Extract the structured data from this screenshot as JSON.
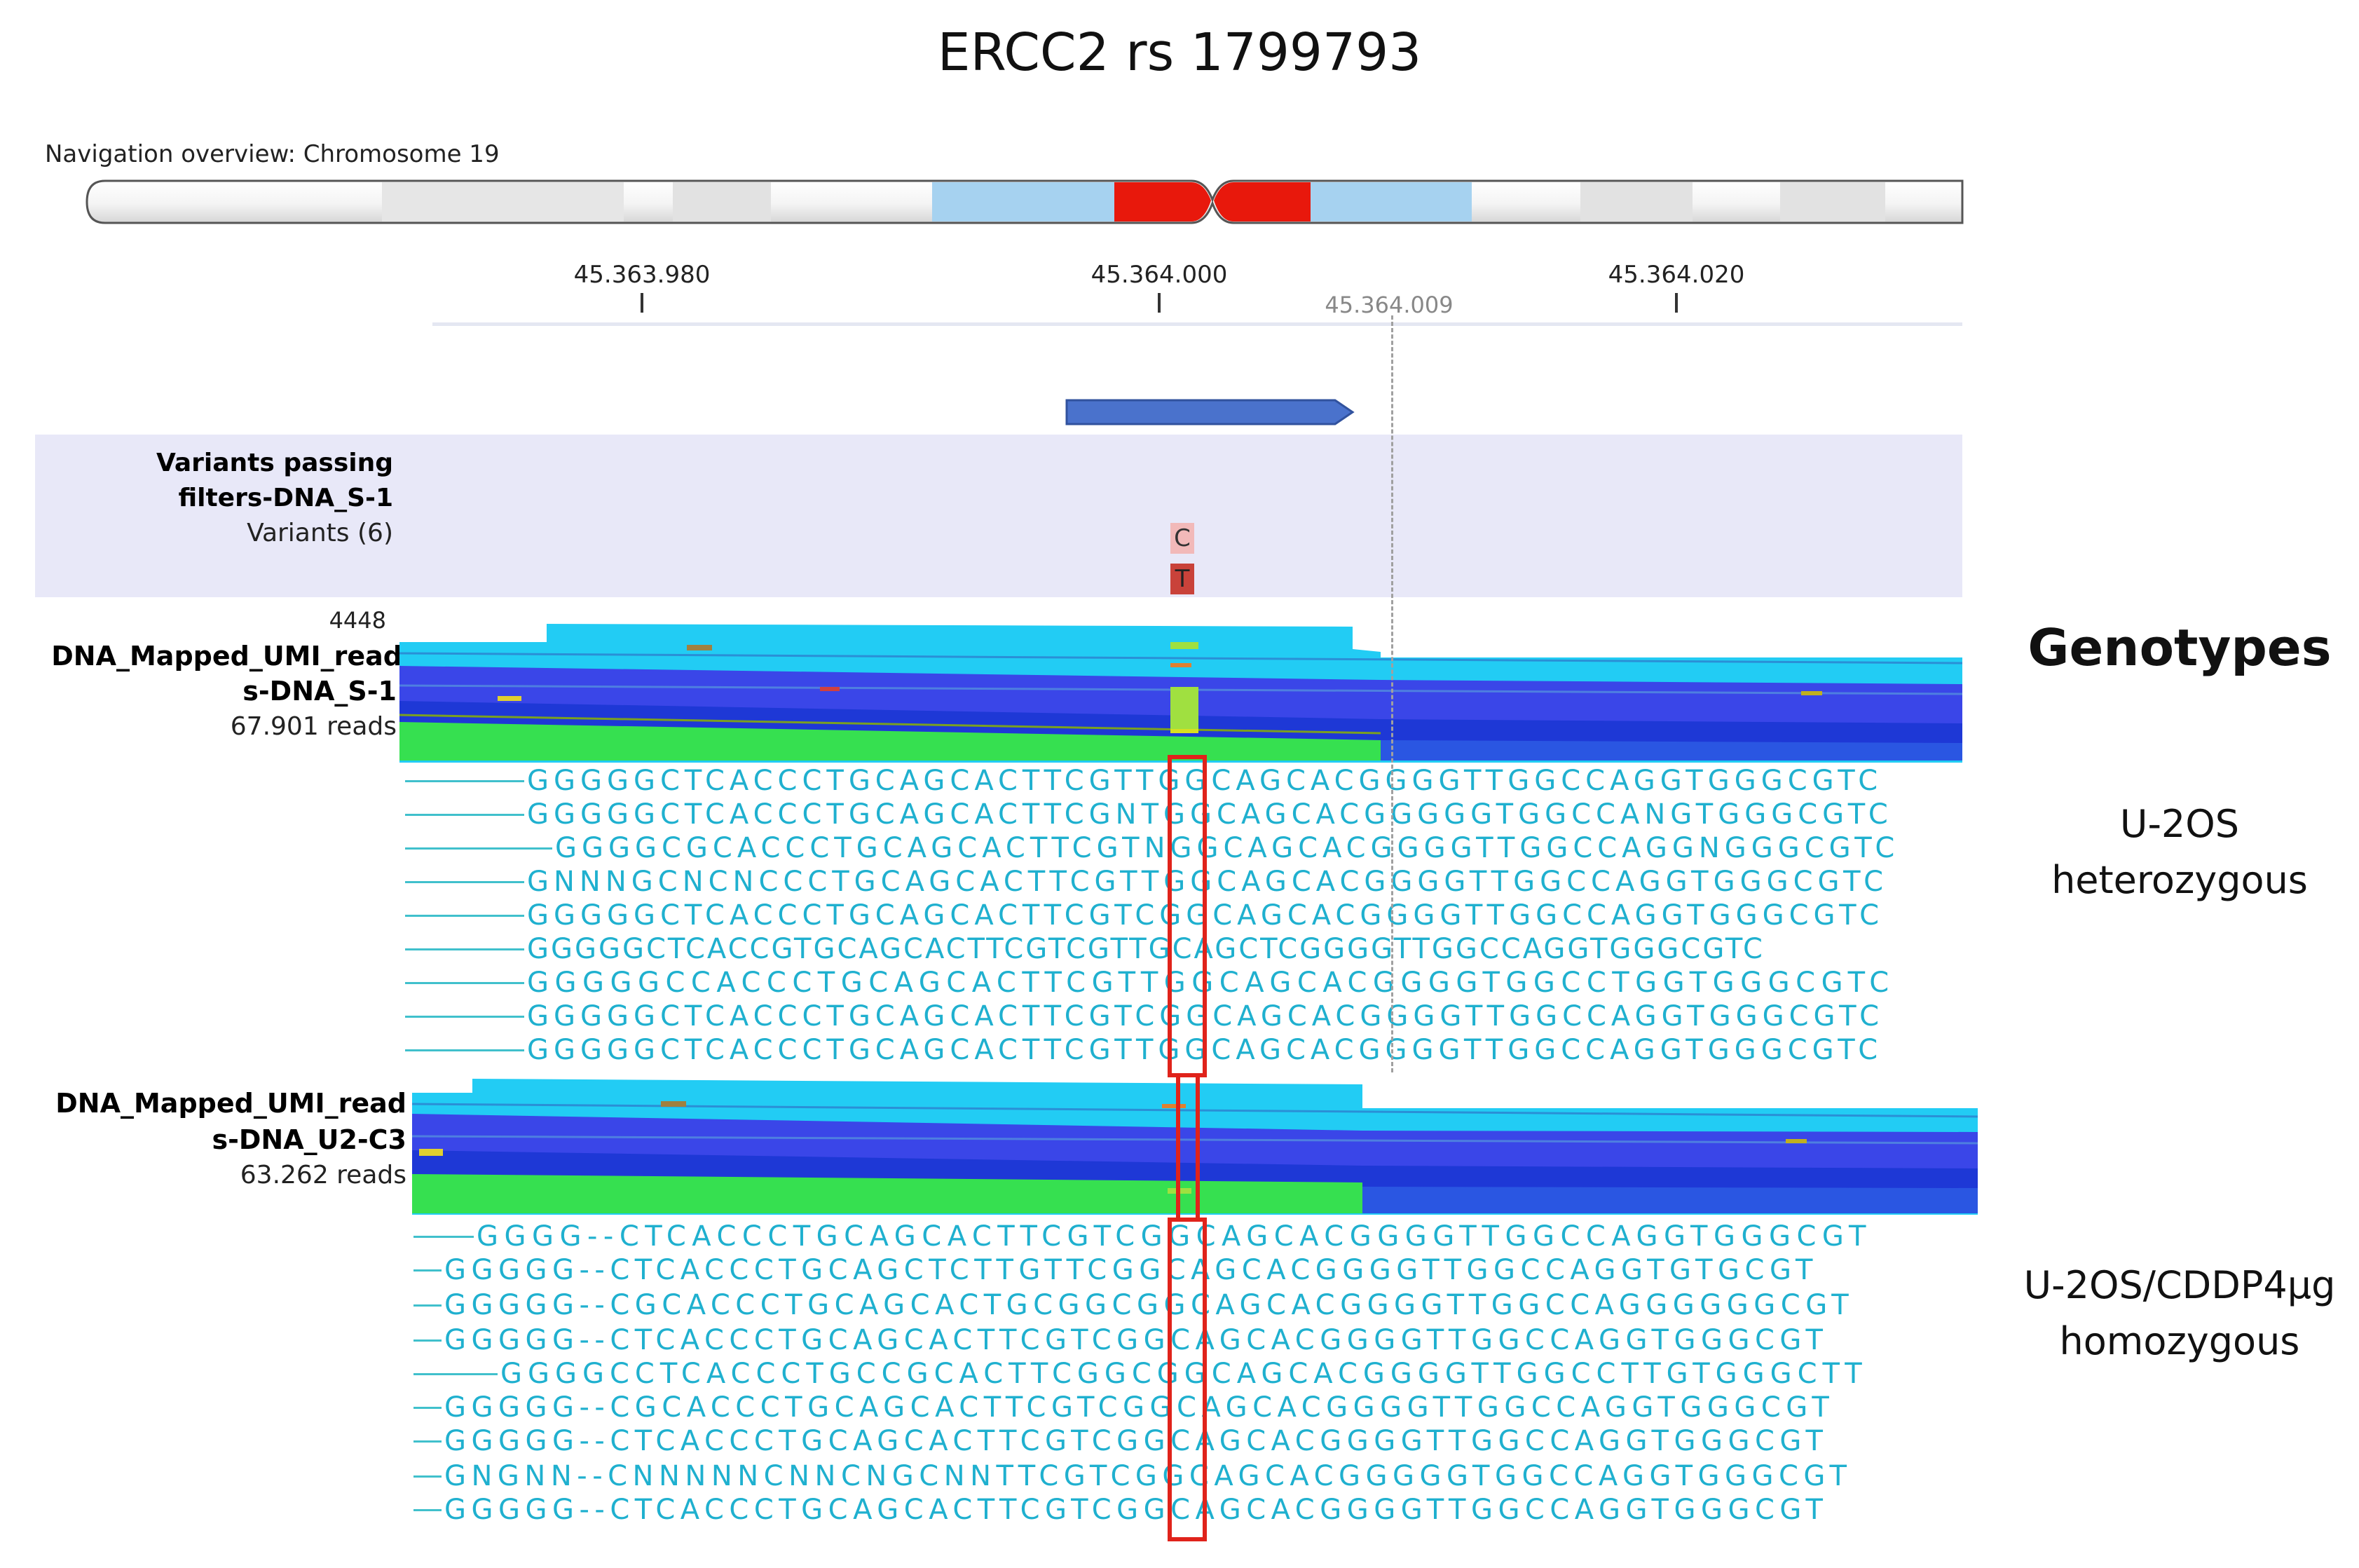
{
  "title": "ERCC2 rs 1799793",
  "navigation": {
    "label": "Navigation overview: Chromosome 19"
  },
  "ruler": {
    "ticks": [
      "45.363.980",
      "45.364.000",
      "45.364.020"
    ],
    "cursor_label": "45.364.009"
  },
  "variant_track": {
    "name_line1": "Variants passing",
    "name_line2": "filters-DNA_S-1",
    "sub_label": "Variants (6)",
    "alleles": [
      "C",
      "T"
    ]
  },
  "tracks": [
    {
      "scale_max": "4448",
      "name_line1": "DNA_Mapped_UMI_read",
      "name_line2": "s-DNA_S-1",
      "reads_label": "67.901 reads",
      "sequences": [
        "GGGGGCTCACCCTGCAGCACTTCGTTGGCAGCACGGGGTTGGCCAGGTGGGCGTC",
        "GGGGGCTCACCCTGCAGCACTTCGNTGGCAGCACGGGGGTGGCCANGTGGGCGTC",
        "GGGGCGCACCCTGCAGCACTTCGTNGGCAGCACGGGGTTGGCCAGGNGGGCGTC",
        "GNNNGCNCNCCCTGCAGCACTTCGTTGGCAGCACGGGGTTGGCCAGGTGGGCGTC",
        "GGGGGCTCACCCTGCAGCACTTCGTCGGCAGCACGGGGTTGGCCAGGTGGGCGTC",
        "GGGGGCTCACCGTGCAGCACTTCGTCGTTGCAGCTCGGGGTTGGCCAGGTGGGCGTC",
        "GGGGGCCACCCTGCAGCACTTCGTTGGCAGCACGGGGTGGCCTGGTGGGCGTC",
        "GGGGGCTCACCCTGCAGCACTTCGTCGGCAGCACGGGGTTGGCCAGGTGGGCGTC",
        "GGGGGCTCACCCTGCAGCACTTCGTTGGCAGCACGGGGTTGGCCAGGTGGGCGTC"
      ]
    },
    {
      "scale_max": "",
      "name_line1": "DNA_Mapped_UMI_read",
      "name_line2": "s-DNA_U2-C3",
      "reads_label": "63.262 reads",
      "sequences": [
        "GGGG--CTCACCCTGCAGCACTTCGTCGGCAGCACGGGGTTGGCCAGGTGGGCGT",
        "GGGGG--CTCACCCTGCAGCTCTTGTTCGGCAGCACGGGGTTGGCCAGGTGTGCGT",
        "GGGGG--CGCACCCTGCAGCACTGCGGCGGCAGCACGGGGTTGGCCAGGGGGGCGT",
        "GGGGG--CTCACCCTGCAGCACTTCGTCGGCAGCACGGGGTTGGCCAGGTGGGCGT",
        "GGGGCCTCACCCTGCCGCACTTCGGCGGCAGCACGGGGTTGGCCTTGTGGGCTT",
        "GGGGG--CGCACCCTGCAGCACTTCGTCGGCAGCACGGGGTTGGCCAGGTGGGCGT",
        "GGGGG--CTCACCCTGCAGCACTTCGTCGGCAGCACGGGGTTGGCCAGGTGGGCGT",
        "GNGNN--CNNNNNCNNCNGCNNTTCGTCGGCAGCACGGGGGTGGCCAGGTGGGCGT",
        "GGGGG--CTCACCCTGCAGCACTTCGTCGGCAGCACGGGGTTGGCCAGGTGGGCGT"
      ]
    }
  ],
  "genotypes": {
    "heading": "Genotypes",
    "items": [
      {
        "line1": "U-2OS",
        "line2": "heterozygous"
      },
      {
        "line1": "U-2OS/CDDP4µg",
        "line2": "homozygous"
      }
    ]
  },
  "colors": {
    "highlight_box": "#e0231b",
    "ideogram_centromere": "#e8180c",
    "ideogram_band": "#a6d2f0",
    "read_sequence": "#1fb0cf",
    "coverage_cyan": "#22ccf4",
    "coverage_blue": "#3a46e8",
    "coverage_green": "#36e050",
    "gene_arrow": "#4a72cc"
  }
}
